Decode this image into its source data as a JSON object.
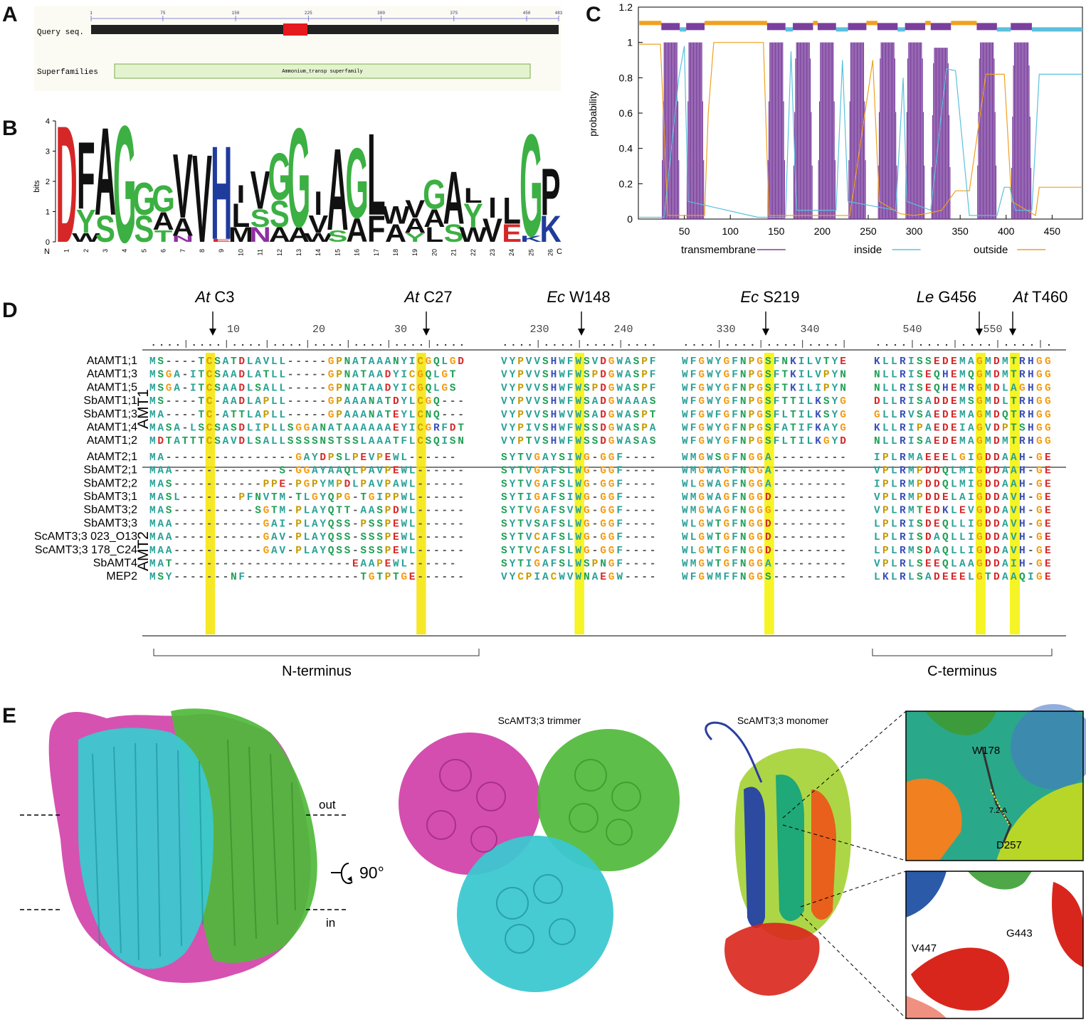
{
  "panels": {
    "a": {
      "letter": "A",
      "query_label": "Query seq.",
      "superfamilies_label": "Superfamilies",
      "ticks": [
        "1",
        "75",
        "150",
        "225",
        "300",
        "375",
        "450",
        "483"
      ],
      "superfamily_name": "Ammonium_transp superfamily",
      "colors": {
        "bar": "#222222",
        "highlight": "#e41a1c",
        "domain": "#e3f3cf"
      }
    },
    "b": {
      "letter": "B",
      "ylabel": "bits",
      "yticks": [
        "0",
        "1",
        "2",
        "3",
        "4"
      ],
      "positions": [
        "1",
        "2",
        "3",
        "4",
        "5",
        "6",
        "7",
        "8",
        "9",
        "10",
        "11",
        "12",
        "13",
        "14",
        "15",
        "16",
        "17",
        "18",
        "19",
        "20",
        "21",
        "22",
        "23",
        "24",
        "25",
        "26"
      ],
      "n_label": "N",
      "c_label": "C",
      "logo_letters": [
        "D",
        "F",
        "A",
        "G",
        "G",
        "V",
        "V",
        "H",
        "I",
        "V",
        "G",
        "I",
        "A",
        "G",
        "L",
        "W",
        "G",
        "A",
        "L",
        "I",
        "L",
        "G",
        "P",
        "R"
      ],
      "colors": {
        "D": "#d62728",
        "F": "#111111",
        "A": "#111111",
        "G": "#3cb043",
        "S": "#3cb043",
        "V": "#111111",
        "H": "#1f3b9c",
        "R": "#1f3b9c",
        "K": "#1f3b9c",
        "E": "#d62728",
        "N": "#8e2fa0",
        "L": "#111111",
        "Y": "#3cb043",
        "W": "#111111",
        "I": "#111111",
        "P": "#111111",
        "M": "#111111",
        "T": "#3cb043"
      }
    },
    "c": {
      "letter": "C",
      "ylabel": "probability",
      "yticks": [
        "0",
        "0.2",
        "0.4",
        "0.6",
        "0.8",
        "1",
        "1.2"
      ],
      "xticks": [
        "50",
        "100",
        "150",
        "200",
        "250",
        "300",
        "350",
        "400",
        "450"
      ],
      "legend": [
        {
          "label": "transmembrane",
          "color": "#7b3f9e"
        },
        {
          "label": "inside",
          "color": "#5bc0de"
        },
        {
          "label": "outside",
          "color": "#f0a020"
        }
      ]
    },
    "d": {
      "letter": "D",
      "markers": [
        {
          "species": "At",
          "residue": "C3"
        },
        {
          "species": "At",
          "residue": "C27"
        },
        {
          "species": "Ec",
          "residue": "W148"
        },
        {
          "species": "Ec",
          "residue": "S219"
        },
        {
          "species": "Le",
          "residue": "G456"
        },
        {
          "species": "At",
          "residue": "T460"
        }
      ],
      "ruler_numbers": [
        "10",
        "20",
        "30",
        "230",
        "240",
        "330",
        "340",
        "540",
        "550"
      ],
      "group_labels": [
        "AMT1",
        "AMT2"
      ],
      "sequences": [
        {
          "name": "AtAMT1;1",
          "s1": "MS----TCSATDLAVLL-----GPNATAAANYICGQLGD",
          "s2": "VYPVVSHWFWSVDGWASPF",
          "s3": "WFGWYGFNPGSFNKILVTYE",
          "s4": "KLLRISSEDEMAGMDMTRHGG"
        },
        {
          "name": "AtAMT1;3",
          "s1": "MSGA-ITCSAADLATLL-----GPNATAADYICGQLGT",
          "s2": "VYPVVSHWFWSPDGWASPF",
          "s3": "WFGWYGFNPGSFTKILVPYN",
          "s4": "NLLRISEQHEMQGMDMTRHGG"
        },
        {
          "name": "AtAMT1;5",
          "s1": "MSGA-ITCSAADLSALL-----GPNATAADYICGQLGS",
          "s2": "VYPVVSHWFWSPDGWASPF",
          "s3": "WFGWYGFNPGSFTKILIPYN",
          "s4": "NLLRISEQHEMRGMDLAGHGG"
        },
        {
          "name": "SbAMT1;1",
          "s1": "MS----TC-AADLAPLL-----GPAAANATDYLCGQ---",
          "s2": "VYPVVSHWFWSADGWAAAS",
          "s3": "WFGWYGFNPGSFTTILKSYG",
          "s4": "DLLRISADDEMSGMDLTRHGG"
        },
        {
          "name": "SbAMT1;3",
          "s1": "MA----TC-ATTLAPLL-----GPAAANATEYLCNQ---",
          "s2": "VYPVVSHWVWSADGWASPT",
          "s3": "WFGWFGFNPGSFLTILKSYG",
          "s4": "GLLRVSAEDEMAGMDQTRHGG"
        },
        {
          "name": "AtAMT1;4",
          "s1": "MASA-LSCSASDLIPLLSGGANATAAAAAAEYICGRFDT",
          "s2": "VYPIVSHWFWSSDGWASPA",
          "s3": "WFGWYGFNPGSFATIFKAYG",
          "s4": "KLLRIPAEDEIAGVDPTSHGG"
        },
        {
          "name": "AtAMT1;2",
          "s1": "MDTATTTCSAVDLSALLSSSSNSTSSLAAATFLCSQISN",
          "s2": "VYPTVSHWFWSSDGWASAS",
          "s3": "WFGWYGFNPGSFLTILKGYD",
          "s4": "NLLRISAEDEMAGMDMTRHGG"
        },
        {
          "name": "AtAMT2;1",
          "s1": "MA----------------GAYDPSLPEVPEWL------",
          "s2": "SYTVGAYSIWG-GGF----",
          "s3": "WMGWSGFNGGA---------",
          "s4": "IPLRMAEEELGIGDDAAH-GE"
        },
        {
          "name": "SbAMT2;1",
          "s1": "MAA-------------S-GGAYAAQLPAVPEWL------",
          "s2": "SYTVGAFSLWG-GGF----",
          "s3": "WMGWAGFNGGA---------",
          "s4": "VPLRMPDDQLMIGDDAAH-GE"
        },
        {
          "name": "SbAMT2;2",
          "s1": "MAS-----------PPE-PGPYMPDLPAVPAWL------",
          "s2": "SYTVGAFSLWG-GGF----",
          "s3": "WLGWAGFNGGA---------",
          "s4": "IPLRMPDDQLMIGDDAAH-GE"
        },
        {
          "name": "SbAMT3;1",
          "s1": "MASL-------PFNVTM-TLGYQPG-TGIPPWL------",
          "s2": "SYTIGAFSIWG-GGF----",
          "s3": "WMGWAGFNGGD---------",
          "s4": "VPLRMPDDELAIGDDAVH-GE"
        },
        {
          "name": "SbAMT3;2",
          "s1": "MAS----------SGTM-PLAYQTT-AASPDWL------",
          "s2": "SYTVGAFSVWG-GGF----",
          "s3": "WMGWAGFNGGG---------",
          "s4": "VPLRMTEDKLEVGDDAVH-GE"
        },
        {
          "name": "SbAMT3;3",
          "s1": "MAA-----------GAI-PLAYQSS-PSSPEWL------",
          "s2": "SYTVSAFSLWG-GGF----",
          "s3": "WLGWTGFNGGD---------",
          "s4": "LPLRISDEQLLIGDDAVH-GE"
        },
        {
          "name": "ScAMT3;3 023_O13",
          "s1": "MAA-----------GAV-PLAYQSS-SSSPEWL------",
          "s2": "SYTVCAFSLWG-GGF----",
          "s3": "WLGWTGFNGGD---------",
          "s4": "LPLRISDAQLLIGDDAVH-GE"
        },
        {
          "name": "ScAMT3;3 178_C24",
          "s1": "MAA-----------GAV-PLAYQSS-SSSPEWL------",
          "s2": "SYTVCAFSLWG-GGF----",
          "s3": "WLGWTGFNGGD---------",
          "s4": "LPLRMSDAQLLIGDDAVH-GE"
        },
        {
          "name": "SbAMT4",
          "s1": "MAT----------------------EAAPEWL------",
          "s2": "SYTIGAFSLWSPNGF----",
          "s3": "WMGWTGFNGGA---------",
          "s4": "VPLRLSEEQLAAGDDAIH-GE"
        },
        {
          "name": "MEP2",
          "s1": "MSY-------NF--------------TGTPTGE------",
          "s2": "VYCPIACWVWNAEGW----",
          "s3": "WFGWMFFNGGS---------",
          "s4": "LKLRLSADEEELGTDAAQIGE"
        }
      ],
      "bracket_labels": [
        "N-terminus",
        "C-terminus"
      ],
      "aa_colors": {
        "hydrophobic": "#2aa198",
        "polar": "#1f9f55",
        "acidic": "#d62728",
        "basic": "#3b4fb8",
        "G": "#f39c12",
        "P": "#c5a000",
        "special": "#8e44ad"
      }
    },
    "e": {
      "letter": "E",
      "titles": [
        "ScAMT3;3 trimmer",
        "ScAMT3;3 monomer"
      ],
      "membrane_labels": [
        "out",
        "in"
      ],
      "rotation_label": "90°",
      "residue_labels": [
        "W178",
        "7.2 A",
        "D257",
        "V447",
        "G443"
      ],
      "colors": {
        "chainA": "#d03fa8",
        "chainB": "#3cc8d0",
        "chainC": "#4fba3a"
      }
    }
  }
}
